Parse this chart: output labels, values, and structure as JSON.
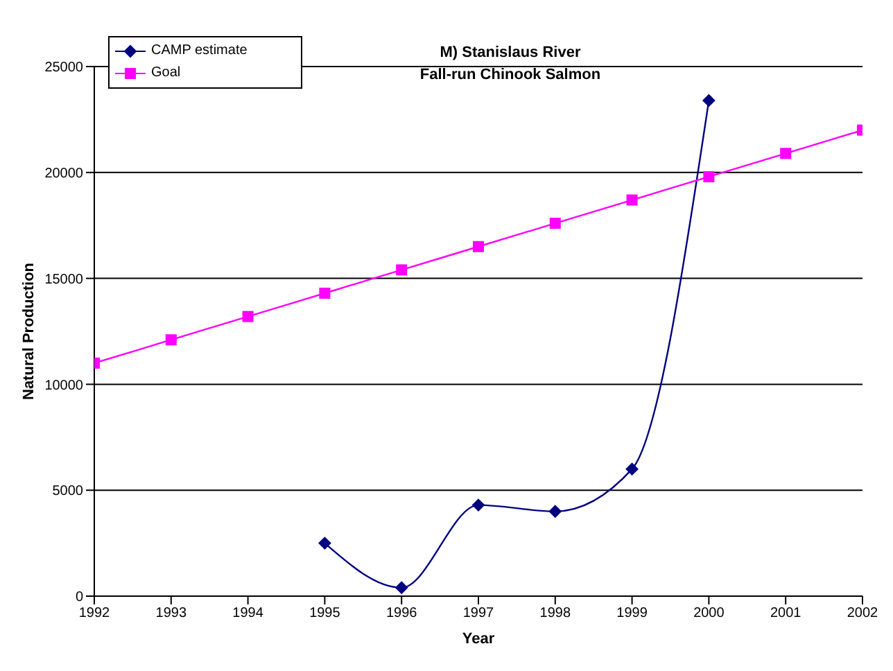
{
  "chart_data": {
    "type": "line",
    "title": "M) Stanislaus River\nFall-run Chinook Salmon",
    "xlabel": "Year",
    "ylabel": "Natural Production",
    "x": [
      1992,
      1993,
      1994,
      1995,
      1996,
      1997,
      1998,
      1999,
      2000,
      2001,
      2002
    ],
    "series": [
      {
        "name": "CAMP estimate",
        "color": "#000080",
        "marker": "diamond",
        "values": [
          null,
          null,
          null,
          2500,
          400,
          4300,
          4000,
          6000,
          23400,
          null,
          null
        ]
      },
      {
        "name": "Goal",
        "color": "#ff00ff",
        "marker": "square",
        "values": [
          11000,
          12100,
          13200,
          14300,
          15400,
          16500,
          17600,
          18700,
          19800,
          20900,
          22000
        ]
      }
    ],
    "xlim": [
      1992,
      2002
    ],
    "xticks": [
      1992,
      1993,
      1994,
      1995,
      1996,
      1997,
      1998,
      1999,
      2000,
      2001,
      2002
    ],
    "ylim": [
      0,
      25000
    ],
    "yticks": [
      0,
      5000,
      10000,
      15000,
      20000,
      25000
    ],
    "grid": "y",
    "legend": "top left"
  }
}
